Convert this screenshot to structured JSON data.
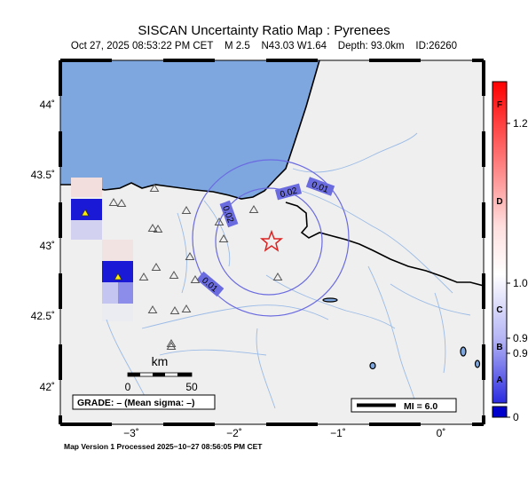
{
  "title": "SISCAN Uncertainty Ratio Map : Pyrenees",
  "subtitle": {
    "date": "Oct 27, 2025 08:53:22 PM CET",
    "magnitude": "M 2.5",
    "location": "N43.03 W1.64",
    "depth": "Depth: 93.0km",
    "id": "ID:26260"
  },
  "axes": {
    "lat_labels": [
      "44˚",
      "43.5˚",
      "43˚",
      "42.5˚",
      "42˚"
    ],
    "lon_labels": [
      "−3˚",
      "−2˚",
      "−1˚",
      "0˚"
    ]
  },
  "contours": [
    "0.01",
    "0.02",
    "0.02",
    "0.01"
  ],
  "scale_bar": {
    "unit": "km",
    "start": "0",
    "end": "50"
  },
  "grade_box": "GRADE: – (Mean sigma: –)",
  "mi_box": "MI = 6.0",
  "colorbar": {
    "letters": [
      "F",
      "D",
      "C",
      "B",
      "A"
    ],
    "values": [
      "1.2",
      "1.0",
      "0.9",
      "0.9",
      "0"
    ],
    "top_color": "#ff0000",
    "mid_color": "#ffffff",
    "bottom_color": "#0000cc"
  },
  "epicenter_color": "#dd2222",
  "sea_color": "#7ea7e0",
  "land_color": "#efefef",
  "footer": "Map Version 1 Processed 2025−10−27 08:56:05 PM CET"
}
